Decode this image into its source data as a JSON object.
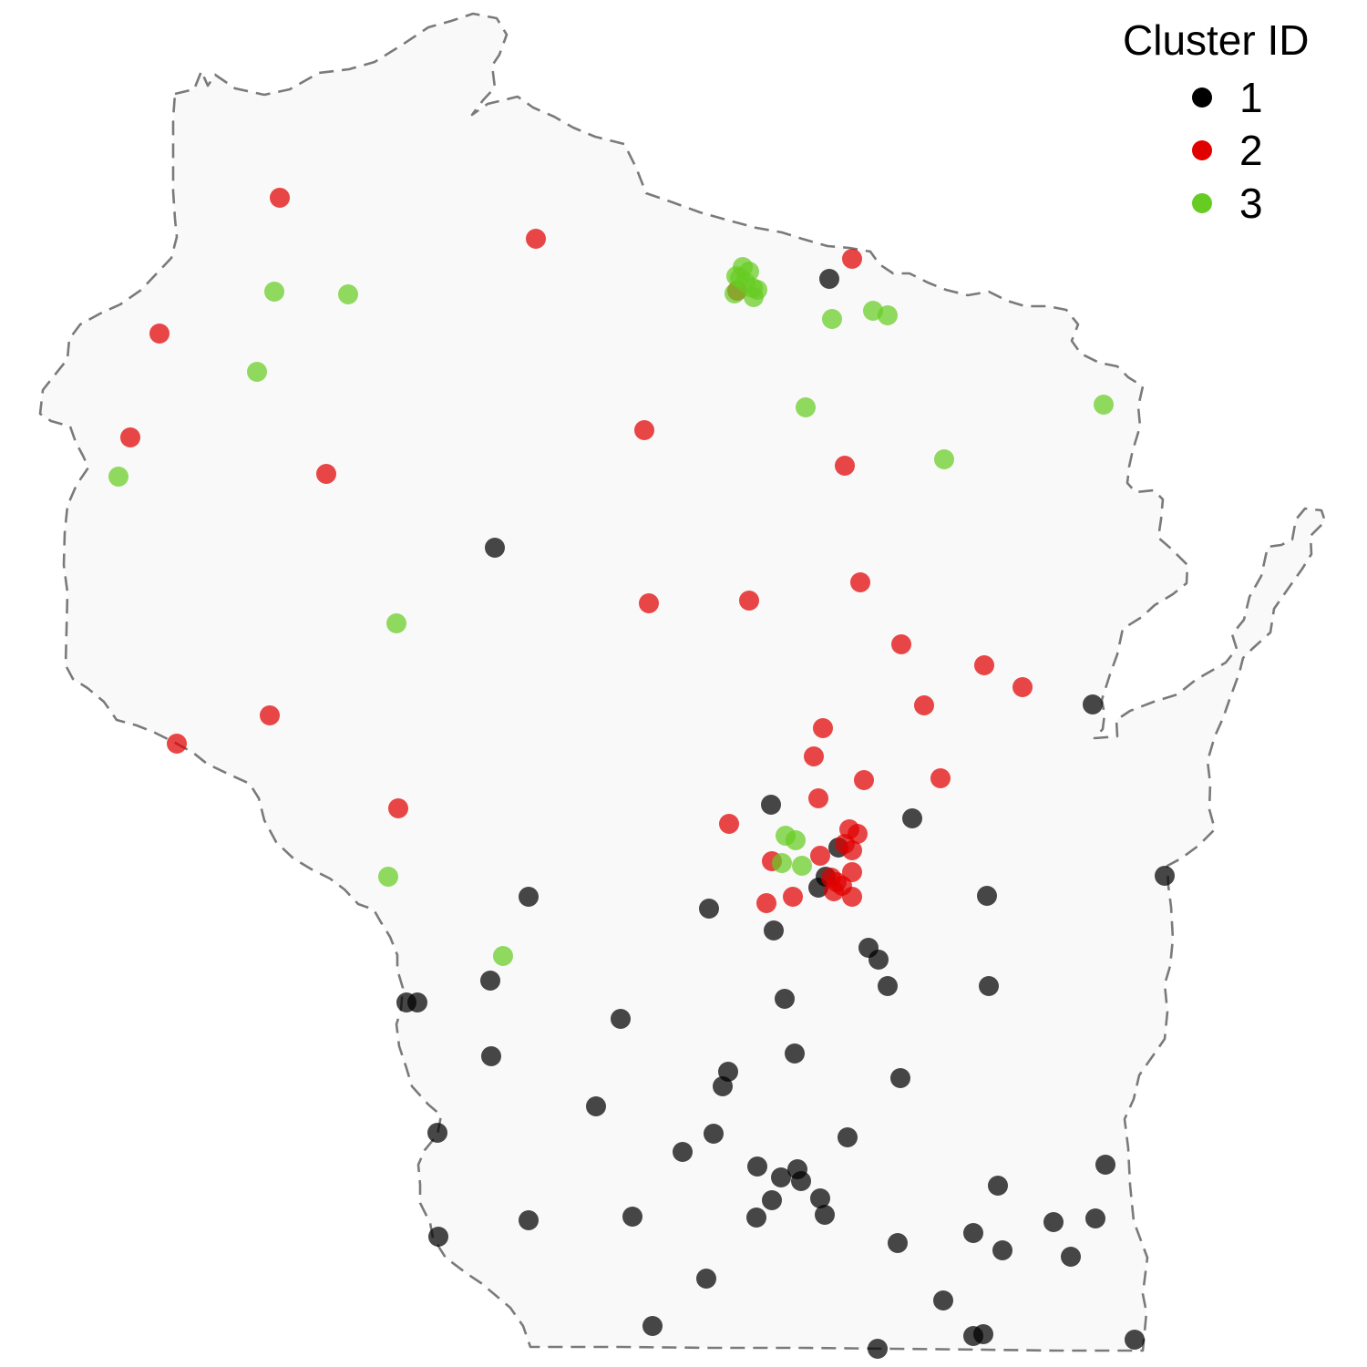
{
  "legend": {
    "title": "Cluster ID",
    "items": [
      {
        "label": "1",
        "color": "#000000"
      },
      {
        "label": "2",
        "color": "#e00000"
      },
      {
        "label": "3",
        "color": "#66cc22"
      }
    ]
  },
  "map": {
    "region": "Wisconsin",
    "outline_style": "dashed",
    "fill_color": "#f9f9f9",
    "point_opacity": 0.72
  },
  "chart_data": {
    "type": "scatter",
    "series": [
      {
        "name": "1",
        "color": "#000000",
        "points": [
          [
            543,
            601
          ],
          [
            910,
            306
          ],
          [
            1199,
            773
          ],
          [
            846,
            883
          ],
          [
            1001,
            898
          ],
          [
            920,
            930
          ],
          [
            898,
            974
          ],
          [
            1278,
            961
          ],
          [
            580,
            984
          ],
          [
            778,
            997
          ],
          [
            1083,
            983
          ],
          [
            849,
            1021
          ],
          [
            953,
            1040
          ],
          [
            964,
            1053
          ],
          [
            974,
            1082
          ],
          [
            1085,
            1082
          ],
          [
            538,
            1076
          ],
          [
            446,
            1100
          ],
          [
            458,
            1100
          ],
          [
            861,
            1096
          ],
          [
            681,
            1118
          ],
          [
            539,
            1159
          ],
          [
            872,
            1156
          ],
          [
            799,
            1176
          ],
          [
            793,
            1192
          ],
          [
            988,
            1183
          ],
          [
            654,
            1214
          ],
          [
            480,
            1243
          ],
          [
            783,
            1244
          ],
          [
            930,
            1248
          ],
          [
            749,
            1264
          ],
          [
            831,
            1280
          ],
          [
            857,
            1292
          ],
          [
            875,
            1283
          ],
          [
            879,
            1296
          ],
          [
            1213,
            1278
          ],
          [
            1095,
            1301
          ],
          [
            900,
            1315
          ],
          [
            847,
            1317
          ],
          [
            905,
            1333
          ],
          [
            830,
            1336
          ],
          [
            694,
            1335
          ],
          [
            580,
            1339
          ],
          [
            1156,
            1341
          ],
          [
            1202,
            1337
          ],
          [
            985,
            1364
          ],
          [
            1068,
            1353
          ],
          [
            1100,
            1372
          ],
          [
            1175,
            1379
          ],
          [
            481,
            1357
          ],
          [
            775,
            1403
          ],
          [
            1035,
            1427
          ],
          [
            716,
            1455
          ],
          [
            1068,
            1466
          ],
          [
            1079,
            1464
          ],
          [
            963,
            1480
          ],
          [
            1245,
            1470
          ],
          [
            906,
            962
          ]
        ]
      },
      {
        "name": "2",
        "color": "#e00000",
        "points": [
          [
            307,
            217
          ],
          [
            588,
            262
          ],
          [
            935,
            284
          ],
          [
            809,
            319
          ],
          [
            175,
            366
          ],
          [
            143,
            480
          ],
          [
            707,
            472
          ],
          [
            358,
            520
          ],
          [
            927,
            511
          ],
          [
            712,
            662
          ],
          [
            822,
            659
          ],
          [
            944,
            639
          ],
          [
            989,
            707
          ],
          [
            1080,
            730
          ],
          [
            1122,
            754
          ],
          [
            1014,
            774
          ],
          [
            296,
            785
          ],
          [
            194,
            816
          ],
          [
            903,
            799
          ],
          [
            893,
            830
          ],
          [
            948,
            856
          ],
          [
            898,
            876
          ],
          [
            1032,
            854
          ],
          [
            437,
            887
          ],
          [
            800,
            904
          ],
          [
            932,
            910
          ],
          [
            941,
            915
          ],
          [
            927,
            926
          ],
          [
            935,
            933
          ],
          [
            847,
            945
          ],
          [
            900,
            939
          ],
          [
            935,
            957
          ],
          [
            912,
            963
          ],
          [
            918,
            968
          ],
          [
            924,
            972
          ],
          [
            915,
            978
          ],
          [
            935,
            984
          ],
          [
            870,
            984
          ],
          [
            841,
            991
          ]
        ]
      },
      {
        "name": "3",
        "color": "#66cc22",
        "points": [
          [
            815,
            293
          ],
          [
            822,
            298
          ],
          [
            808,
            303
          ],
          [
            818,
            310
          ],
          [
            826,
            316
          ],
          [
            831,
            318
          ],
          [
            806,
            322
          ],
          [
            827,
            326
          ],
          [
            812,
            305
          ],
          [
            301,
            320
          ],
          [
            382,
            323
          ],
          [
            913,
            350
          ],
          [
            958,
            341
          ],
          [
            974,
            346
          ],
          [
            282,
            408
          ],
          [
            884,
            447
          ],
          [
            1211,
            444
          ],
          [
            1036,
            504
          ],
          [
            130,
            523
          ],
          [
            435,
            684
          ],
          [
            862,
            917
          ],
          [
            873,
            922
          ],
          [
            858,
            947
          ],
          [
            880,
            950
          ],
          [
            426,
            962
          ],
          [
            552,
            1049
          ]
        ]
      }
    ]
  }
}
